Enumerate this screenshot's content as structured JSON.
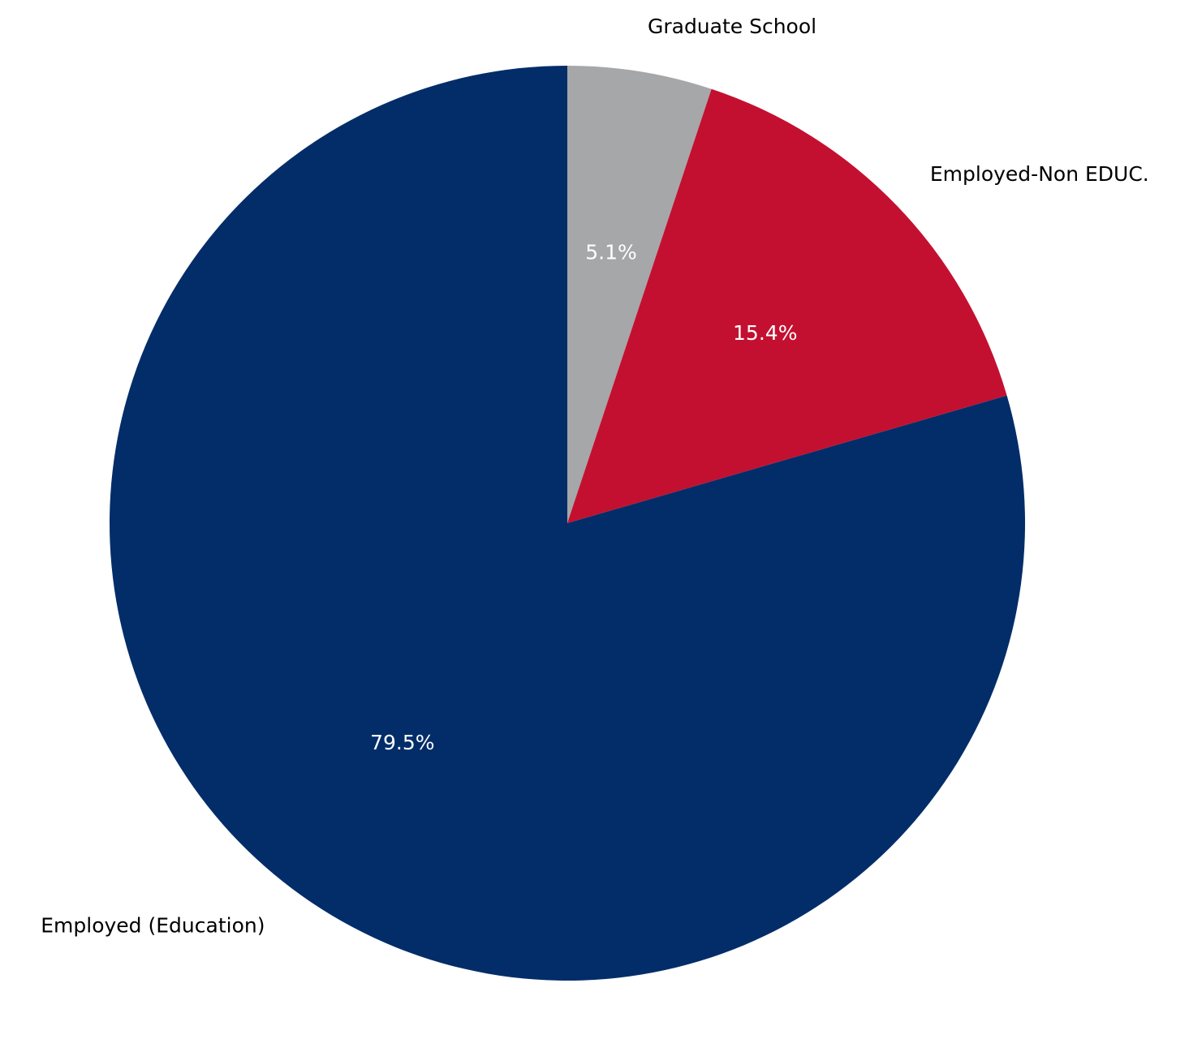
{
  "chart_data": {
    "type": "pie",
    "title": "",
    "start": "top",
    "direction": "clockwise",
    "slices": [
      {
        "label": "Graduate School",
        "value": 5.1,
        "pct_label": "5.1%",
        "color": "#a6a7a9"
      },
      {
        "label": "Employed-Non EDUC.",
        "value": 15.4,
        "pct_label": "15.4%",
        "color": "#c41030"
      },
      {
        "label": "Employed (Education)",
        "value": 79.5,
        "pct_label": "79.5%",
        "color": "#032d69"
      }
    ]
  }
}
